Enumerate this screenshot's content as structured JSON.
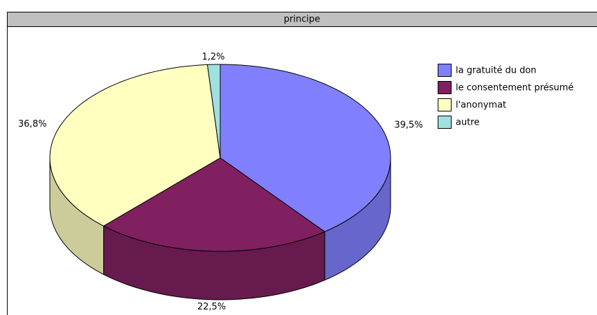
{
  "chart_data": {
    "type": "pie",
    "title": "principe",
    "categories": [
      "la gratuité du don",
      "le consentement présumé",
      "l'anonymat",
      "autre"
    ],
    "values": [
      39.5,
      22.5,
      36.8,
      1.2
    ],
    "value_labels": [
      "39,5%",
      "22,5%",
      "36,8%",
      "1,2%"
    ],
    "colors": [
      "#8080ff",
      "#802060",
      "#ffffc0",
      "#a0e0e0"
    ],
    "legend": "right"
  }
}
